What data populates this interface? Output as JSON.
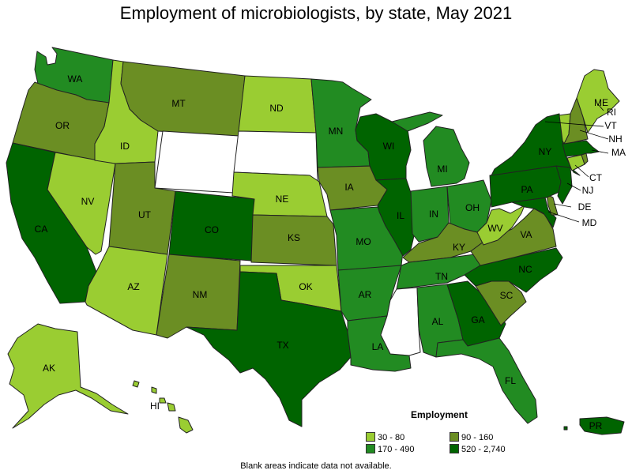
{
  "title": "Employment of microbiologists, by state, May 2021",
  "legend": {
    "title": "Employment",
    "bins": [
      {
        "label": "30 - 80",
        "color": "#9acd32"
      },
      {
        "label": "90 - 160",
        "color": "#6b8e23"
      },
      {
        "label": "170 - 490",
        "color": "#228b22"
      },
      {
        "label": "520 - 2,740",
        "color": "#006400"
      }
    ]
  },
  "note": "Blank areas indicate data not available.",
  "no_data_color": "#ffffff",
  "states": {
    "WA": 2,
    "OR": 1,
    "CA": 3,
    "NV": 0,
    "ID": 0,
    "MT": 1,
    "WY": -1,
    "UT": 1,
    "AZ": 0,
    "CO": 3,
    "NM": 1,
    "ND": 0,
    "SD": -1,
    "NE": 0,
    "KS": 1,
    "OK": 0,
    "TX": 3,
    "MN": 2,
    "IA": 1,
    "MO": 2,
    "AR": 2,
    "LA": 2,
    "WI": 3,
    "IL": 3,
    "MI": 2,
    "IN": 2,
    "OH": 2,
    "KY": 1,
    "TN": 2,
    "MS": -1,
    "AL": 2,
    "GA": 3,
    "FL": 2,
    "SC": 1,
    "NC": 3,
    "VA": 1,
    "WV": 0,
    "MD": 3,
    "DE": 1,
    "PA": 3,
    "NJ": 3,
    "NY": 3,
    "CT": 0,
    "RI": 1,
    "MA": 3,
    "VT": 0,
    "NH": 1,
    "ME": 0,
    "AK": 0,
    "HI": 0,
    "PR": 3
  },
  "labels": {
    "WA": "WA",
    "OR": "OR",
    "CA": "CA",
    "NV": "NV",
    "ID": "ID",
    "MT": "MT",
    "UT": "UT",
    "AZ": "AZ",
    "CO": "CO",
    "NM": "NM",
    "ND": "ND",
    "NE": "NE",
    "KS": "KS",
    "OK": "OK",
    "TX": "TX",
    "MN": "MN",
    "IA": "IA",
    "MO": "MO",
    "AR": "AR",
    "LA": "LA",
    "WI": "WI",
    "IL": "IL",
    "MI": "MI",
    "IN": "IN",
    "OH": "OH",
    "KY": "KY",
    "TN": "TN",
    "AL": "AL",
    "GA": "GA",
    "FL": "FL",
    "SC": "SC",
    "NC": "NC",
    "VA": "VA",
    "WV": "WV",
    "MD": "MD",
    "DE": "DE",
    "PA": "PA",
    "NJ": "NJ",
    "NY": "NY",
    "CT": "CT",
    "RI": "RI",
    "MA": "MA",
    "VT": "VT",
    "NH": "NH",
    "ME": "ME",
    "AK": "AK",
    "HI": "HI",
    "PR": "PR"
  }
}
